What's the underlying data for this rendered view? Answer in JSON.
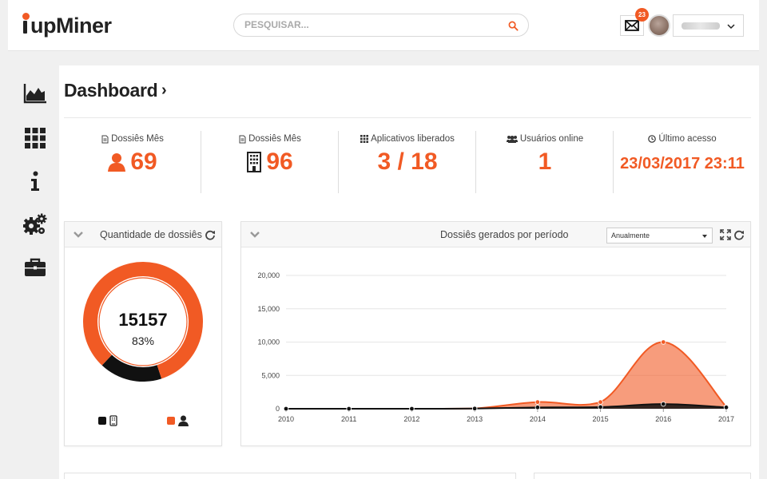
{
  "app": {
    "logo_text": "upMiner"
  },
  "header": {
    "search_placeholder": "PESQUISAR...",
    "mail_count": "23",
    "user_name": "usuario"
  },
  "sidebar": {
    "items": [
      {
        "name": "dashboard",
        "icon": "area-chart-icon"
      },
      {
        "name": "apps",
        "icon": "grid-icon"
      },
      {
        "name": "info",
        "icon": "info-icon"
      },
      {
        "name": "settings",
        "icon": "gears-icon"
      },
      {
        "name": "briefcase",
        "icon": "briefcase-icon"
      }
    ]
  },
  "page": {
    "title": "Dashboard",
    "chevron": "›"
  },
  "stats": [
    {
      "label": "Dossiês Mês",
      "value": "69",
      "icon": "user-icon"
    },
    {
      "label": "Dossiês Mês",
      "value": "96",
      "icon": "building-icon"
    },
    {
      "label": "Aplicativos liberados",
      "value": "3 / 18",
      "icon": "grid-icon"
    },
    {
      "label": "Usuários online",
      "value": "1",
      "icon": "users-icon"
    },
    {
      "label": "Último acesso",
      "value": "23/03/2017 23:11",
      "icon": "clock-icon"
    }
  ],
  "donut_panel": {
    "title": "Quantidade de dossiês",
    "total": "15157",
    "percent": "83%",
    "fraction_primary": 0.83,
    "colors": {
      "primary": "#f15a24",
      "secondary": "#111111"
    }
  },
  "line_panel": {
    "title": "Dossiês gerados por período",
    "period": "Anualmente"
  },
  "chart_data": {
    "type": "area",
    "title": "Dossiês gerados por período",
    "x": [
      "2010",
      "2011",
      "2012",
      "2013",
      "2014",
      "2015",
      "2016",
      "2017"
    ],
    "ylim": [
      0,
      20000
    ],
    "yticks": [
      "0",
      "5,000",
      "10,000",
      "15,000",
      "20,000"
    ],
    "ytick_values": [
      0,
      5000,
      10000,
      15000,
      20000
    ],
    "series": [
      {
        "name": "Pessoa",
        "color": "#f15a24",
        "values": [
          0,
          0,
          0,
          50,
          1000,
          1000,
          10000,
          300
        ]
      },
      {
        "name": "Empresa",
        "color": "#111111",
        "values": [
          0,
          0,
          0,
          30,
          200,
          250,
          700,
          200
        ]
      }
    ],
    "grid": true
  }
}
